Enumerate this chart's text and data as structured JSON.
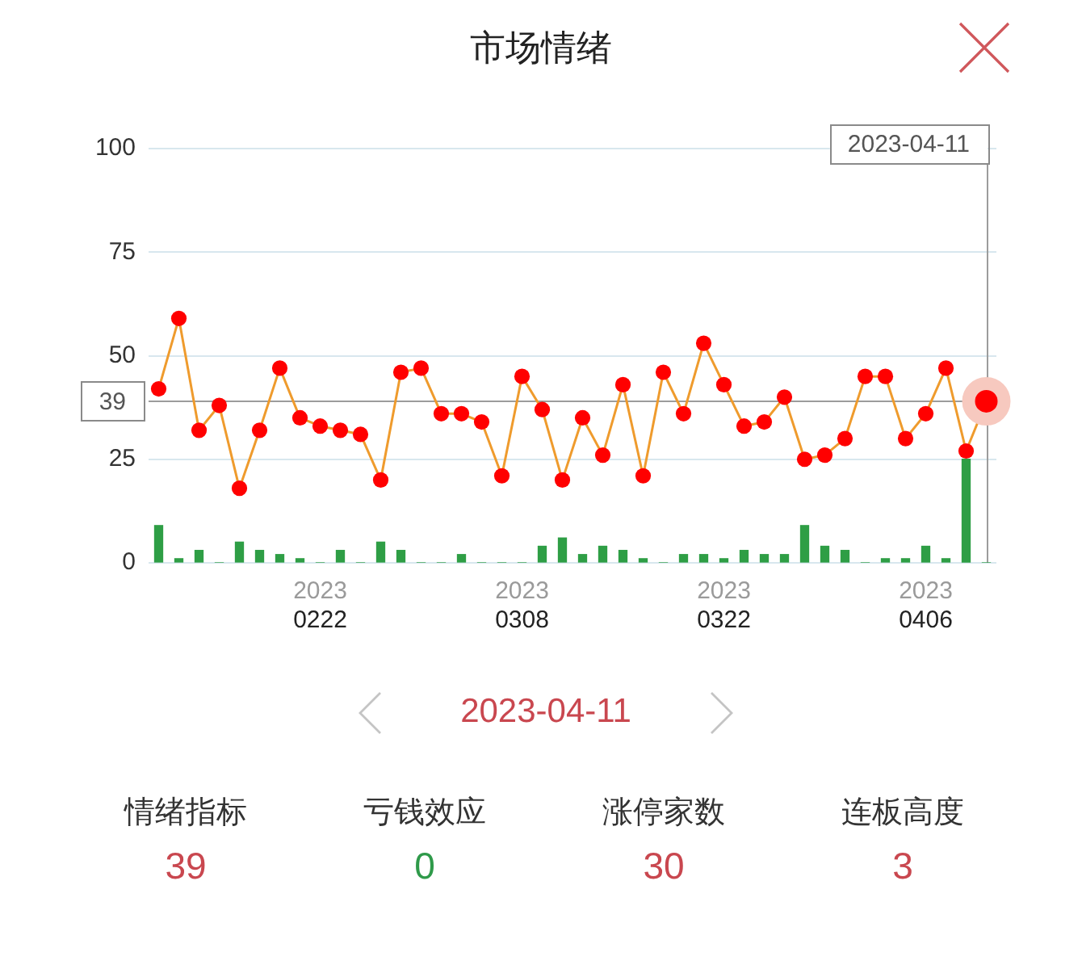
{
  "chart_data": [
    {
      "type": "line",
      "title": "市场情绪",
      "categories": [
        null,
        null,
        null,
        null,
        null,
        null,
        null,
        null,
        "2023\n0222",
        null,
        null,
        null,
        null,
        null,
        null,
        null,
        null,
        null,
        "2023\n0308",
        null,
        null,
        null,
        null,
        null,
        null,
        null,
        null,
        null,
        "2023\n0322",
        null,
        null,
        null,
        null,
        null,
        null,
        null,
        null,
        null,
        "2023\n0406",
        null,
        null,
        null
      ],
      "series": [
        {
          "type": "line",
          "color": "#ef9b2d",
          "colors": [
            "#ff0000",
            "#ff0000",
            "#ff0000",
            "#ff0000",
            "#ff0000",
            "#ff0000",
            "#ff0000",
            "#ff0000",
            "#ff0000",
            "#ff0000",
            "#ff0000",
            "#ff0000",
            "#ff0000",
            "#ff0000",
            "#ff0000",
            "#ff0000",
            "#ff0000",
            "#ff0000",
            "#ff0000",
            "#ff0000",
            "#ff0000",
            "#ff0000",
            "#ff0000",
            "#ff0000",
            "#ff0000",
            "#ff0000",
            "#ff0000",
            "#ff0000",
            "#ff0000",
            "#ff0000",
            "#ff0000",
            "#ff0000",
            "#ff0000",
            "#ff0000",
            "#ff0000",
            "#ff0000",
            "#ff0000",
            "#ff0000",
            "#ff0000",
            "#ff0000",
            "#ff0000",
            "#ff0000"
          ],
          "values": [
            42,
            59,
            32,
            38,
            18,
            32,
            47,
            35,
            33,
            32,
            31,
            20,
            46,
            47,
            36,
            36,
            34,
            21,
            45,
            37,
            20,
            35,
            26,
            43,
            21,
            46,
            36,
            53,
            43,
            33,
            34,
            40,
            25,
            26,
            30,
            45,
            45,
            30,
            36,
            47,
            27,
            39
          ]
        },
        {
          "type": "bar",
          "color": "#2e9e45",
          "values": [
            9,
            1,
            3,
            0,
            5,
            3,
            2,
            1,
            0,
            3,
            0,
            5,
            3,
            0,
            0,
            2,
            0,
            0,
            0,
            4,
            6,
            2,
            4,
            3,
            1,
            0,
            2,
            2,
            1,
            3,
            2,
            2,
            9,
            4,
            3,
            0,
            1,
            1,
            4,
            1,
            25,
            0
          ]
        }
      ],
      "ylim": [
        0,
        100
      ],
      "yticks": [
        0,
        25,
        50,
        75,
        100
      ],
      "grid": "y",
      "marker": "circle",
      "ref_lines": [
        {
          "axis": "y",
          "value": 39,
          "label": "39"
        }
      ],
      "annotations": [
        "2023-04-11"
      ]
    },
    {
      "type": "other",
      "title": "2023-04-11",
      "categories": [
        "情绪指标",
        "亏钱效应",
        "涨停家数",
        "连板高度"
      ],
      "values": [
        39,
        0,
        30,
        3
      ],
      "colors": [
        "#c9474f",
        "#2f9a4a",
        "#c9474f",
        "#c9474f"
      ],
      "data_labels": true
    }
  ]
}
